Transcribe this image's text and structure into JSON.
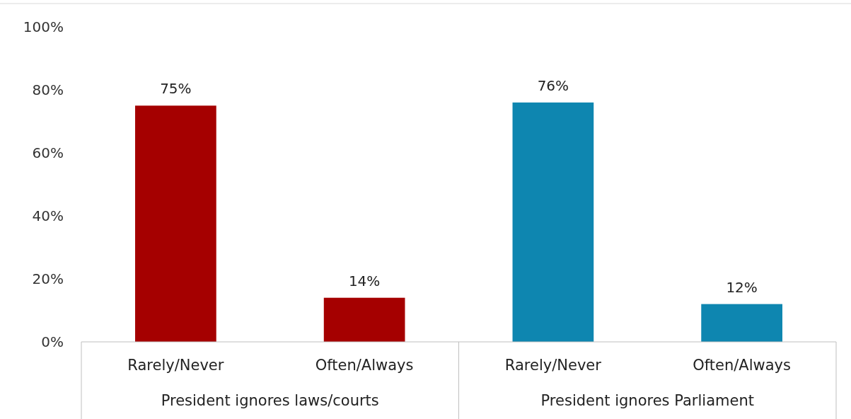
{
  "chart_data": {
    "type": "bar",
    "categories": [
      "Rarely/Never",
      "Often/Always",
      "Rarely/Never",
      "Often/Always"
    ],
    "values": [
      75,
      14,
      76,
      12
    ],
    "colors": [
      "#a50000",
      "#a50000",
      "#0e86b0",
      "#0e86b0"
    ],
    "value_labels": [
      "75%",
      "14%",
      "76%",
      "12%"
    ],
    "ylim": [
      0,
      100
    ],
    "yticks": [
      {
        "value": 0,
        "label": "0%"
      },
      {
        "value": 20,
        "label": "20%"
      },
      {
        "value": 40,
        "label": "40%"
      },
      {
        "value": 60,
        "label": "60%"
      },
      {
        "value": 80,
        "label": "80%"
      },
      {
        "value": 100,
        "label": "100%"
      }
    ],
    "annotations": [
      "President ignores laws/courts",
      "President ignores Parliament"
    ]
  }
}
